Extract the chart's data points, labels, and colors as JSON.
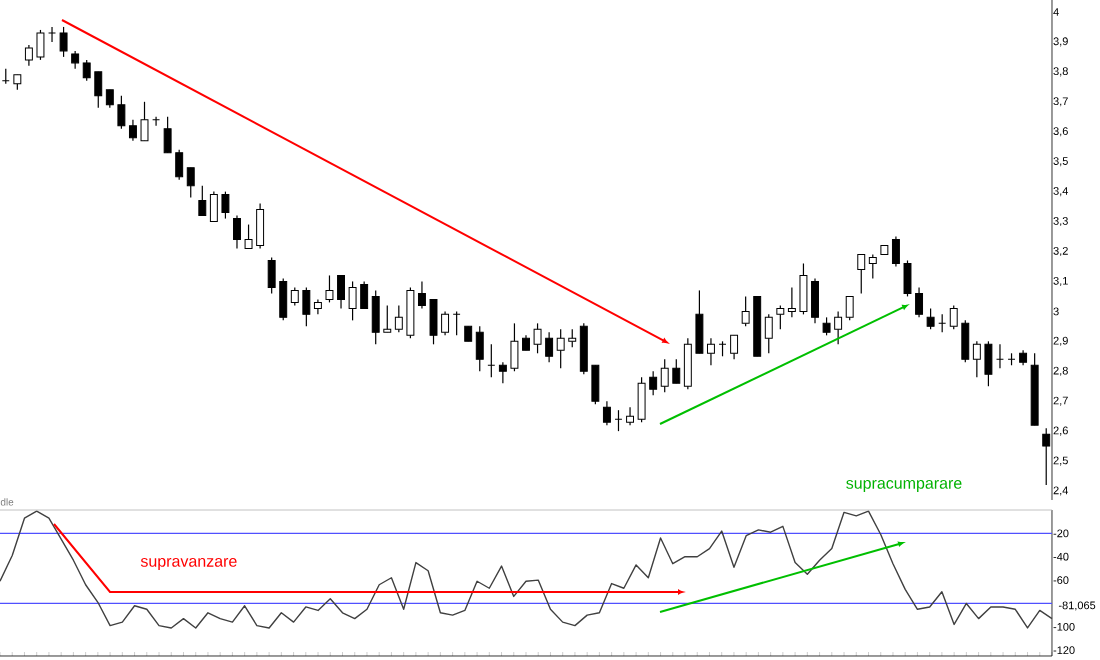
{
  "chart_data": [
    {
      "type": "candlestick",
      "categories": [
        null,
        null,
        null,
        null,
        null,
        null,
        null,
        null,
        null,
        null,
        null,
        null,
        null,
        null,
        null,
        null,
        null,
        null,
        null,
        null,
        null,
        null,
        null,
        null,
        null,
        null,
        null,
        null,
        null,
        null,
        null,
        null,
        null,
        null,
        null,
        null,
        null,
        null,
        null,
        null,
        null,
        null,
        null,
        null,
        null,
        null,
        null,
        null,
        null,
        null,
        null,
        null,
        null,
        null,
        null,
        null,
        null,
        null,
        null,
        null,
        null,
        null,
        null,
        null,
        null,
        null,
        null,
        null,
        null,
        null,
        null,
        null,
        null,
        null,
        null,
        null,
        null,
        null,
        null,
        null,
        null,
        null,
        null,
        null,
        null,
        null,
        null,
        null,
        null,
        null,
        null
      ],
      "ohlc": [
        [
          3.77,
          3.81,
          3.76,
          3.77
        ],
        [
          3.76,
          3.79,
          3.74,
          3.79
        ],
        [
          3.84,
          3.89,
          3.82,
          3.88
        ],
        [
          3.85,
          3.94,
          3.84,
          3.93
        ],
        [
          3.93,
          3.95,
          3.9,
          3.93
        ],
        [
          3.93,
          3.95,
          3.85,
          3.87
        ],
        [
          3.86,
          3.87,
          3.81,
          3.83
        ],
        [
          3.83,
          3.84,
          3.77,
          3.78
        ],
        [
          3.8,
          3.8,
          3.68,
          3.72
        ],
        [
          3.74,
          3.74,
          3.68,
          3.69
        ],
        [
          3.69,
          3.72,
          3.61,
          3.62
        ],
        [
          3.62,
          3.64,
          3.57,
          3.58
        ],
        [
          3.57,
          3.7,
          3.57,
          3.64
        ],
        [
          3.64,
          3.65,
          3.62,
          3.64
        ],
        [
          3.61,
          3.65,
          3.53,
          3.53
        ],
        [
          3.53,
          3.54,
          3.44,
          3.45
        ],
        [
          3.48,
          3.48,
          3.38,
          3.42
        ],
        [
          3.37,
          3.42,
          3.32,
          3.32
        ],
        [
          3.3,
          3.4,
          3.3,
          3.39
        ],
        [
          3.39,
          3.4,
          3.31,
          3.33
        ],
        [
          3.31,
          3.32,
          3.21,
          3.24
        ],
        [
          3.21,
          3.29,
          3.21,
          3.24
        ],
        [
          3.22,
          3.36,
          3.21,
          3.34
        ],
        [
          3.17,
          3.18,
          3.06,
          3.08
        ],
        [
          3.1,
          3.11,
          2.97,
          2.98
        ],
        [
          3.03,
          3.08,
          3.02,
          3.07
        ],
        [
          3.07,
          3.08,
          2.95,
          2.99
        ],
        [
          3.01,
          3.04,
          2.99,
          3.03
        ],
        [
          3.04,
          3.12,
          3.03,
          3.07
        ],
        [
          3.12,
          3.12,
          3.01,
          3.04
        ],
        [
          3.01,
          3.1,
          2.97,
          3.08
        ],
        [
          3.09,
          3.1,
          3.01,
          3.01
        ],
        [
          3.05,
          3.07,
          2.89,
          2.93
        ],
        [
          2.93,
          3.02,
          2.93,
          2.94
        ],
        [
          2.94,
          3.02,
          2.93,
          2.98
        ],
        [
          2.92,
          3.08,
          2.91,
          3.07
        ],
        [
          3.06,
          3.1,
          3.01,
          3.02
        ],
        [
          3.04,
          3.04,
          2.89,
          2.92
        ],
        [
          2.93,
          3.0,
          2.92,
          2.99
        ],
        [
          2.99,
          3.0,
          2.92,
          2.99
        ],
        [
          2.95,
          2.95,
          2.9,
          2.9
        ],
        [
          2.93,
          2.95,
          2.8,
          2.84
        ],
        [
          2.82,
          2.89,
          2.78,
          2.82
        ],
        [
          2.82,
          2.83,
          2.76,
          2.8
        ],
        [
          2.81,
          2.96,
          2.8,
          2.9
        ],
        [
          2.91,
          2.92,
          2.87,
          2.87
        ],
        [
          2.89,
          2.96,
          2.86,
          2.94
        ],
        [
          2.91,
          2.93,
          2.83,
          2.85
        ],
        [
          2.87,
          2.94,
          2.81,
          2.91
        ],
        [
          2.9,
          2.94,
          2.88,
          2.91
        ],
        [
          2.95,
          2.96,
          2.79,
          2.8
        ],
        [
          2.82,
          2.82,
          2.69,
          2.7
        ],
        [
          2.68,
          2.7,
          2.62,
          2.63
        ],
        [
          2.64,
          2.67,
          2.6,
          2.64
        ],
        [
          2.63,
          2.68,
          2.62,
          2.65
        ],
        [
          2.64,
          2.78,
          2.63,
          2.76
        ],
        [
          2.78,
          2.8,
          2.72,
          2.74
        ],
        [
          2.75,
          2.84,
          2.73,
          2.81
        ],
        [
          2.81,
          2.84,
          2.76,
          2.76
        ],
        [
          2.75,
          2.91,
          2.74,
          2.89
        ],
        [
          2.99,
          3.07,
          2.86,
          2.86
        ],
        [
          2.86,
          2.91,
          2.82,
          2.89
        ],
        [
          2.89,
          2.9,
          2.85,
          2.89
        ],
        [
          2.86,
          2.92,
          2.84,
          2.92
        ],
        [
          2.96,
          3.05,
          2.95,
          3.0
        ],
        [
          3.05,
          3.05,
          2.85,
          2.85
        ],
        [
          2.91,
          2.99,
          2.86,
          2.98
        ],
        [
          2.99,
          3.02,
          2.94,
          3.01
        ],
        [
          3.0,
          3.08,
          2.98,
          3.01
        ],
        [
          3.0,
          3.16,
          2.99,
          3.12
        ],
        [
          3.1,
          3.11,
          2.96,
          2.98
        ],
        [
          2.96,
          2.98,
          2.92,
          2.93
        ],
        [
          2.94,
          3.0,
          2.89,
          2.98
        ],
        [
          2.98,
          3.05,
          2.97,
          3.05
        ],
        [
          3.14,
          3.19,
          3.06,
          3.19
        ],
        [
          3.16,
          3.19,
          3.11,
          3.18
        ],
        [
          3.19,
          3.22,
          3.19,
          3.22
        ],
        [
          3.24,
          3.25,
          3.15,
          3.16
        ],
        [
          3.16,
          3.17,
          3.05,
          3.06
        ],
        [
          3.06,
          3.08,
          2.98,
          2.99
        ],
        [
          2.98,
          3.01,
          2.94,
          2.95
        ],
        [
          2.96,
          2.99,
          2.93,
          2.96
        ],
        [
          2.95,
          3.02,
          2.94,
          3.01
        ],
        [
          2.96,
          2.97,
          2.83,
          2.84
        ],
        [
          2.84,
          2.9,
          2.78,
          2.89
        ],
        [
          2.89,
          2.9,
          2.75,
          2.79
        ],
        [
          2.84,
          2.89,
          2.81,
          2.84
        ],
        [
          2.84,
          2.86,
          2.82,
          2.84
        ],
        [
          2.86,
          2.87,
          2.82,
          2.83
        ],
        [
          2.82,
          2.86,
          2.62,
          2.62
        ],
        [
          2.59,
          2.61,
          2.42,
          2.55
        ]
      ],
      "ylim": [
        2.37,
        4.04
      ],
      "yticks": [
        {
          "value": 2.4,
          "label": "2,4"
        },
        {
          "value": 2.5,
          "label": "2,5"
        },
        {
          "value": 2.6,
          "label": "2,6"
        },
        {
          "value": 2.7,
          "label": "2,7"
        },
        {
          "value": 2.8,
          "label": "2,8"
        },
        {
          "value": 2.9,
          "label": "2,9"
        },
        3,
        {
          "value": 3.1,
          "label": "3,1"
        },
        {
          "value": 3.2,
          "label": "3,2"
        },
        {
          "value": 3.3,
          "label": "3,3"
        },
        {
          "value": 3.4,
          "label": "3,4"
        },
        {
          "value": 3.5,
          "label": "3,5"
        },
        {
          "value": 3.6,
          "label": "3,6"
        },
        {
          "value": 3.7,
          "label": "3,7"
        },
        {
          "value": 3.8,
          "label": "3,8"
        },
        {
          "value": 3.9,
          "label": "3,9"
        },
        4
      ],
      "tick_labels": "y"
    },
    {
      "type": "line",
      "categories": [
        null,
        null,
        null,
        null,
        null,
        null,
        null,
        null,
        null,
        null,
        null,
        null,
        null,
        null,
        null,
        null,
        null,
        null,
        null,
        null,
        null,
        null,
        null,
        null,
        null,
        null,
        null,
        null,
        null,
        null,
        null,
        null,
        null,
        null,
        null,
        null,
        null,
        null,
        null,
        null,
        null,
        null,
        null,
        null,
        null,
        null,
        null,
        null,
        null,
        null,
        null,
        null,
        null,
        null,
        null,
        null,
        null,
        null,
        null,
        null,
        null,
        null,
        null,
        null,
        null,
        null,
        null,
        null,
        null,
        null,
        null,
        null,
        null,
        null,
        null,
        null,
        null,
        null,
        null,
        null,
        null,
        null,
        null,
        null,
        null,
        null,
        null
      ],
      "series": [
        {
          "color": "#404040",
          "values": [
            -61,
            -39,
            -7,
            -1,
            -7,
            -25,
            -43,
            -64,
            -79,
            -99,
            -96,
            -82,
            -85,
            -99,
            -101,
            -93,
            -101,
            -88,
            -93,
            -96,
            -82,
            -99,
            -101,
            -88,
            -96,
            -83,
            -86,
            -76,
            -88,
            -93,
            -85,
            -64,
            -58,
            -85,
            -45,
            -52,
            -88,
            -90,
            -86,
            -61,
            -67,
            -48,
            -74,
            -61,
            -60,
            -85,
            -96,
            -99,
            -90,
            -88,
            -63,
            -67,
            -47,
            -58,
            -24,
            -46,
            -40,
            -40,
            -33,
            -18,
            -49,
            -22,
            -17,
            -19,
            -14,
            -45,
            -55,
            -43,
            -33,
            -2,
            -5,
            -1,
            -21,
            -46,
            -68,
            -85,
            -83,
            -70,
            -98,
            -80,
            -93,
            -83,
            -83,
            -85,
            -101,
            -86,
            -93
          ]
        }
      ],
      "ylim": [
        -125,
        0
      ],
      "yticks": [
        -20,
        -40,
        -60,
        -100,
        -120
      ],
      "ref_lines": [
        {
          "axis": "y",
          "value": -20,
          "color": "#5050ff"
        },
        {
          "axis": "y",
          "value": -80,
          "color": "#5050ff"
        }
      ],
      "annotations": [
        "dle",
        "supravanzare",
        "supracumparare",
        "-81,065"
      ],
      "tick_labels": "y"
    }
  ]
}
